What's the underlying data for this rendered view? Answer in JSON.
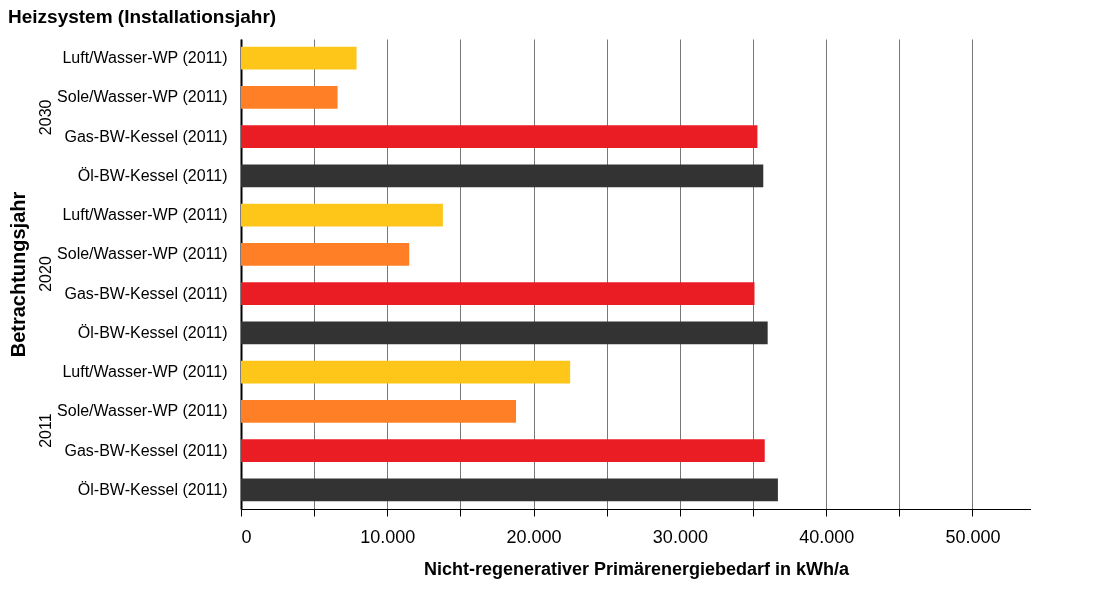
{
  "chart_data": {
    "type": "bar",
    "orientation": "horizontal",
    "title": "Heizsystem (Installationsjahr)",
    "xlabel": "Nicht-regenerativer Primärenergiebedarf in kWh/a",
    "ylabel": "Betrachtungsjahr",
    "categories": [
      "Luft/Wasser-WP (2011)",
      "Sole/Wasser-WP (2011)",
      "Gas-BW-Kessel (2011)",
      "Öl-BW-Kessel (2011)",
      "Luft/Wasser-WP (2011)",
      "Sole/Wasser-WP (2011)",
      "Gas-BW-Kessel (2011)",
      "Öl-BW-Kessel (2011)",
      "Luft/Wasser-WP (2011)",
      "Sole/Wasser-WP (2011)",
      "Gas-BW-Kessel (2011)",
      "Öl-BW-Kessel (2011)"
    ],
    "values": [
      7900,
      6600,
      35300,
      35700,
      13800,
      11500,
      35100,
      36000,
      22500,
      18800,
      35800,
      36700
    ],
    "colors": [
      "#fec619",
      "#fe7f26",
      "#ea1c24",
      "#333333",
      "#fec619",
      "#fe7f26",
      "#ea1c24",
      "#333333",
      "#fec619",
      "#fe7f26",
      "#ea1c24",
      "#333333"
    ],
    "annotations": [
      "2030",
      "2020",
      "2011"
    ],
    "xlim": [
      0,
      54000
    ],
    "xticks": [
      0,
      {
        "value": 5000,
        "label": null
      },
      {
        "value": 10000,
        "label": "10.000"
      },
      {
        "value": 15000,
        "label": null
      },
      {
        "value": 20000,
        "label": "20.000"
      },
      {
        "value": 25000,
        "label": null
      },
      {
        "value": 30000,
        "label": "30.000"
      },
      {
        "value": 35000,
        "label": null
      },
      {
        "value": 40000,
        "label": "40.000"
      },
      {
        "value": 45000,
        "label": null
      },
      {
        "value": 50000,
        "label": "50.000"
      }
    ],
    "grid": "x",
    "legend": false
  }
}
